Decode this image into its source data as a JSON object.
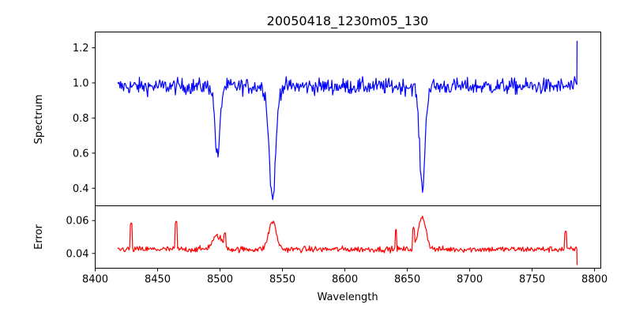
{
  "chart_data": {
    "type": "line",
    "title": "20050418_1230m05_130",
    "xlabel": "Wavelength",
    "xlim": [
      8400,
      8805
    ],
    "xticks": [
      8400,
      8450,
      8500,
      8550,
      8600,
      8650,
      8700,
      8750,
      8800
    ],
    "panels": [
      {
        "name": "spectrum",
        "ylabel": "Spectrum",
        "ylim": [
          0.3,
          1.29
        ],
        "yticks": [
          0.4,
          0.6,
          0.8,
          1.0,
          1.2
        ],
        "ytick_labels": [
          "0.4",
          "0.6",
          "0.8",
          "1.0",
          "1.2"
        ],
        "color": "#0000ff",
        "features": {
          "x_start": 8418,
          "x_end": 8786,
          "step": 0.6,
          "baseline": 0.98,
          "noise_amp": 0.045,
          "absorption_lines": [
            {
              "center": 8498,
              "depth": 0.4,
              "width": 2.0
            },
            {
              "center": 8542,
              "depth": 0.64,
              "width": 2.6
            },
            {
              "center": 8662,
              "depth": 0.58,
              "width": 2.2
            }
          ],
          "end_spike": {
            "x": 8786,
            "value": 1.24
          }
        }
      },
      {
        "name": "error",
        "ylabel": "Error",
        "ylim": [
          0.031,
          0.069
        ],
        "yticks": [
          0.04,
          0.06
        ],
        "ytick_labels": [
          "0.04",
          "0.06"
        ],
        "color": "#ff0000",
        "features": {
          "x_start": 8418,
          "x_end": 8786,
          "step": 0.6,
          "baseline": 0.0425,
          "noise_amp": 0.0018,
          "bumps": [
            {
              "center": 8498,
              "height": 0.008,
              "width": 4
            },
            {
              "center": 8542,
              "height": 0.017,
              "width": 3
            },
            {
              "center": 8662,
              "height": 0.02,
              "width": 3
            }
          ],
          "spikes": [
            {
              "x": 8429,
              "value": 0.059
            },
            {
              "x": 8465,
              "value": 0.06
            },
            {
              "x": 8504,
              "value": 0.053
            },
            {
              "x": 8641,
              "value": 0.055
            },
            {
              "x": 8655,
              "value": 0.056
            },
            {
              "x": 8777,
              "value": 0.054
            }
          ],
          "end_drop": {
            "x": 8786,
            "value": 0.033
          }
        }
      }
    ]
  }
}
